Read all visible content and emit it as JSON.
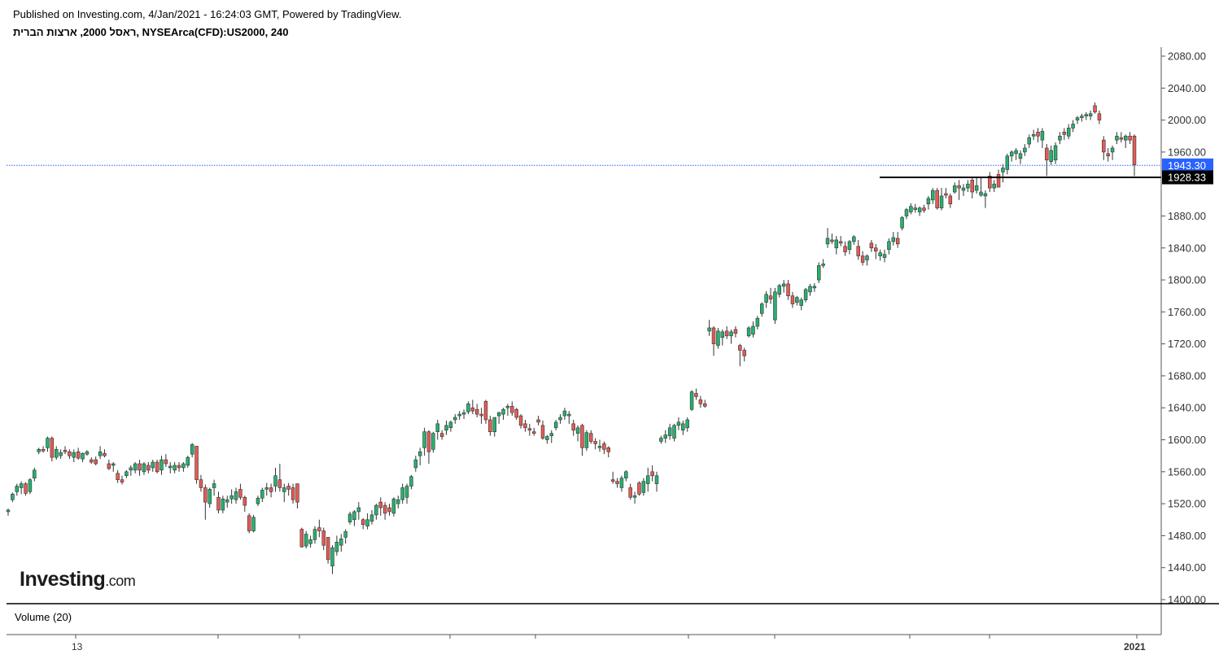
{
  "header": {
    "published": "Published on Investing.com, 4/Jan/2021 - 16:24:03 GMT, Powered by TradingView.",
    "title": "ראסל 2000, ארצות הברית, NYSEArca(CFD):US2000, 240"
  },
  "logo": {
    "main": "Investing",
    "suffix": ".com"
  },
  "volume_label": "Volume (20)",
  "colors": {
    "up": "#26b170",
    "down": "#e55b56",
    "price_line": "#2962ff",
    "support_line": "#000000",
    "price_tag_bg": "#2962ff",
    "support_tag_bg": "#000000"
  },
  "chart_data": {
    "type": "candlestick",
    "title": "ראסל 2000, ארצות הברית, NYSEArca(CFD):US2000, 240",
    "ylim": [
      1395,
      2095
    ],
    "y_ticks": [
      "2080.00",
      "2040.00",
      "2000.00",
      "1960.00",
      "1880.00",
      "1840.00",
      "1800.00",
      "1760.00",
      "1720.00",
      "1680.00",
      "1640.00",
      "1600.00",
      "1560.00",
      "1520.00",
      "1480.00",
      "1440.00",
      "1400.00"
    ],
    "x_tick_labels": [
      "13",
      "2021"
    ],
    "current_price": {
      "value": 1943.3,
      "label": "1943.30"
    },
    "horizontal_line": {
      "value": 1928.33,
      "label": "1928.33"
    },
    "candles": [
      [
        1510,
        1514,
        1505,
        1512
      ],
      [
        1525,
        1534,
        1522,
        1532
      ],
      [
        1535,
        1545,
        1530,
        1542
      ],
      [
        1540,
        1548,
        1532,
        1545
      ],
      [
        1545,
        1547,
        1530,
        1533
      ],
      [
        1535,
        1552,
        1532,
        1550
      ],
      [
        1552,
        1565,
        1548,
        1562
      ],
      [
        1585,
        1590,
        1582,
        1588
      ],
      [
        1588,
        1592,
        1584,
        1586
      ],
      [
        1590,
        1604,
        1585,
        1602
      ],
      [
        1602,
        1604,
        1573,
        1578
      ],
      [
        1578,
        1592,
        1575,
        1588
      ],
      [
        1580,
        1588,
        1576,
        1584
      ],
      [
        1587,
        1592,
        1582,
        1585
      ],
      [
        1585,
        1588,
        1576,
        1580
      ],
      [
        1578,
        1588,
        1572,
        1584
      ],
      [
        1585,
        1590,
        1575,
        1577
      ],
      [
        1576,
        1584,
        1572,
        1583
      ],
      [
        1582,
        1587,
        1580,
        1585
      ],
      [
        1575,
        1578,
        1570,
        1572
      ],
      [
        1575,
        1579,
        1568,
        1570
      ],
      [
        1580,
        1592,
        1576,
        1585
      ],
      [
        1583,
        1588,
        1578,
        1580
      ],
      [
        1570,
        1575,
        1562,
        1564
      ],
      [
        1568,
        1572,
        1560,
        1570
      ],
      [
        1558,
        1562,
        1546,
        1550
      ],
      [
        1550,
        1555,
        1544,
        1547
      ],
      [
        1555,
        1562,
        1552,
        1560
      ],
      [
        1562,
        1568,
        1555,
        1565
      ],
      [
        1562,
        1572,
        1558,
        1570
      ],
      [
        1570,
        1575,
        1555,
        1562
      ],
      [
        1560,
        1572,
        1556,
        1570
      ],
      [
        1568,
        1572,
        1558,
        1562
      ],
      [
        1565,
        1575,
        1560,
        1572
      ],
      [
        1572,
        1575,
        1558,
        1560
      ],
      [
        1562,
        1580,
        1556,
        1575
      ],
      [
        1575,
        1582,
        1566,
        1570
      ],
      [
        1565,
        1572,
        1558,
        1567
      ],
      [
        1562,
        1572,
        1558,
        1568
      ],
      [
        1568,
        1572,
        1560,
        1565
      ],
      [
        1565,
        1572,
        1560,
        1570
      ],
      [
        1568,
        1580,
        1565,
        1578
      ],
      [
        1582,
        1596,
        1578,
        1594
      ],
      [
        1592,
        1592,
        1545,
        1550
      ],
      [
        1550,
        1556,
        1535,
        1540
      ],
      [
        1540,
        1544,
        1500,
        1522
      ],
      [
        1520,
        1540,
        1515,
        1538
      ],
      [
        1540,
        1550,
        1530,
        1545
      ],
      [
        1528,
        1535,
        1508,
        1512
      ],
      [
        1512,
        1530,
        1508,
        1526
      ],
      [
        1522,
        1530,
        1515,
        1525
      ],
      [
        1526,
        1538,
        1520,
        1530
      ],
      [
        1525,
        1540,
        1520,
        1535
      ],
      [
        1538,
        1545,
        1525,
        1528
      ],
      [
        1528,
        1530,
        1510,
        1518
      ],
      [
        1505,
        1508,
        1483,
        1486
      ],
      [
        1486,
        1506,
        1484,
        1503
      ],
      [
        1520,
        1530,
        1517,
        1527
      ],
      [
        1527,
        1540,
        1522,
        1537
      ],
      [
        1538,
        1546,
        1530,
        1540
      ],
      [
        1540,
        1545,
        1528,
        1535
      ],
      [
        1542,
        1565,
        1535,
        1555
      ],
      [
        1550,
        1570,
        1535,
        1540
      ],
      [
        1535,
        1545,
        1522,
        1540
      ],
      [
        1542,
        1546,
        1530,
        1538
      ],
      [
        1540,
        1545,
        1520,
        1525
      ],
      [
        1545,
        1545,
        1514,
        1522
      ],
      [
        1488,
        1490,
        1465,
        1466
      ],
      [
        1467,
        1486,
        1464,
        1482
      ],
      [
        1470,
        1480,
        1465,
        1475
      ],
      [
        1475,
        1492,
        1470,
        1488
      ],
      [
        1490,
        1500,
        1478,
        1486
      ],
      [
        1486,
        1490,
        1462,
        1468
      ],
      [
        1478,
        1478,
        1445,
        1450
      ],
      [
        1442,
        1468,
        1432,
        1465
      ],
      [
        1460,
        1480,
        1455,
        1472
      ],
      [
        1468,
        1482,
        1460,
        1476
      ],
      [
        1478,
        1488,
        1470,
        1485
      ],
      [
        1497,
        1510,
        1494,
        1507
      ],
      [
        1500,
        1512,
        1492,
        1510
      ],
      [
        1510,
        1522,
        1500,
        1515
      ],
      [
        1500,
        1502,
        1488,
        1494
      ],
      [
        1492,
        1508,
        1488,
        1500
      ],
      [
        1498,
        1512,
        1494,
        1506
      ],
      [
        1506,
        1520,
        1500,
        1518
      ],
      [
        1522,
        1528,
        1505,
        1515
      ],
      [
        1518,
        1522,
        1500,
        1508
      ],
      [
        1515,
        1520,
        1505,
        1510
      ],
      [
        1508,
        1528,
        1504,
        1526
      ],
      [
        1520,
        1530,
        1514,
        1525
      ],
      [
        1525,
        1545,
        1520,
        1540
      ],
      [
        1528,
        1545,
        1520,
        1542
      ],
      [
        1542,
        1556,
        1538,
        1554
      ],
      [
        1565,
        1580,
        1560,
        1575
      ],
      [
        1580,
        1590,
        1568,
        1585
      ],
      [
        1590,
        1615,
        1580,
        1610
      ],
      [
        1610,
        1612,
        1570,
        1585
      ],
      [
        1588,
        1610,
        1584,
        1608
      ],
      [
        1610,
        1625,
        1600,
        1620
      ],
      [
        1608,
        1612,
        1600,
        1604
      ],
      [
        1612,
        1624,
        1606,
        1618
      ],
      [
        1615,
        1624,
        1610,
        1622
      ],
      [
        1625,
        1632,
        1620,
        1628
      ],
      [
        1630,
        1636,
        1625,
        1632
      ],
      [
        1632,
        1638,
        1626,
        1634
      ],
      [
        1635,
        1648,
        1632,
        1645
      ],
      [
        1640,
        1650,
        1632,
        1636
      ],
      [
        1638,
        1645,
        1628,
        1632
      ],
      [
        1632,
        1640,
        1620,
        1630
      ],
      [
        1648,
        1650,
        1620,
        1625
      ],
      [
        1625,
        1630,
        1605,
        1610
      ],
      [
        1610,
        1628,
        1604,
        1628
      ],
      [
        1630,
        1635,
        1620,
        1634
      ],
      [
        1632,
        1640,
        1625,
        1638
      ],
      [
        1640,
        1645,
        1630,
        1642
      ],
      [
        1642,
        1648,
        1630,
        1634
      ],
      [
        1638,
        1640,
        1625,
        1628
      ],
      [
        1630,
        1632,
        1614,
        1618
      ],
      [
        1620,
        1625,
        1610,
        1615
      ],
      [
        1614,
        1620,
        1605,
        1612
      ],
      [
        1610,
        1615,
        1605,
        1608
      ],
      [
        1625,
        1630,
        1618,
        1622
      ],
      [
        1618,
        1624,
        1600,
        1602
      ],
      [
        1600,
        1606,
        1595,
        1604
      ],
      [
        1605,
        1612,
        1596,
        1608
      ],
      [
        1615,
        1625,
        1612,
        1622
      ],
      [
        1625,
        1632,
        1620,
        1628
      ],
      [
        1630,
        1640,
        1625,
        1636
      ],
      [
        1630,
        1636,
        1620,
        1632
      ],
      [
        1620,
        1625,
        1605,
        1612
      ],
      [
        1608,
        1618,
        1598,
        1615
      ],
      [
        1618,
        1620,
        1580,
        1590
      ],
      [
        1590,
        1612,
        1586,
        1609
      ],
      [
        1608,
        1612,
        1595,
        1598
      ],
      [
        1598,
        1602,
        1588,
        1595
      ],
      [
        1590,
        1600,
        1585,
        1592
      ],
      [
        1595,
        1598,
        1582,
        1588
      ],
      [
        1590,
        1592,
        1578,
        1585
      ],
      [
        1550,
        1560,
        1545,
        1548
      ],
      [
        1548,
        1552,
        1540,
        1545
      ],
      [
        1540,
        1555,
        1535,
        1552
      ],
      [
        1552,
        1562,
        1548,
        1560
      ],
      [
        1540,
        1545,
        1525,
        1528
      ],
      [
        1528,
        1535,
        1520,
        1530
      ],
      [
        1546,
        1548,
        1530,
        1532
      ],
      [
        1534,
        1552,
        1530,
        1548
      ],
      [
        1545,
        1565,
        1535,
        1555
      ],
      [
        1560,
        1568,
        1548,
        1555
      ],
      [
        1545,
        1560,
        1535,
        1555
      ],
      [
        1598,
        1605,
        1595,
        1602
      ],
      [
        1602,
        1612,
        1596,
        1606
      ],
      [
        1605,
        1620,
        1600,
        1615
      ],
      [
        1602,
        1620,
        1598,
        1618
      ],
      [
        1618,
        1628,
        1612,
        1622
      ],
      [
        1612,
        1624,
        1606,
        1620
      ],
      [
        1615,
        1628,
        1610,
        1625
      ],
      [
        1638,
        1662,
        1636,
        1660
      ],
      [
        1658,
        1664,
        1650,
        1654
      ],
      [
        1650,
        1655,
        1640,
        1645
      ],
      [
        1645,
        1650,
        1640,
        1642
      ],
      [
        1736,
        1750,
        1730,
        1740
      ],
      [
        1740,
        1742,
        1705,
        1720
      ],
      [
        1718,
        1740,
        1714,
        1736
      ],
      [
        1728,
        1738,
        1718,
        1735
      ],
      [
        1736,
        1742,
        1726,
        1730
      ],
      [
        1730,
        1738,
        1720,
        1735
      ],
      [
        1738,
        1742,
        1728,
        1733
      ],
      [
        1718,
        1720,
        1692,
        1712
      ],
      [
        1712,
        1715,
        1698,
        1705
      ],
      [
        1730,
        1742,
        1728,
        1740
      ],
      [
        1732,
        1748,
        1728,
        1742
      ],
      [
        1742,
        1755,
        1738,
        1752
      ],
      [
        1758,
        1772,
        1754,
        1770
      ],
      [
        1772,
        1786,
        1765,
        1782
      ],
      [
        1780,
        1790,
        1770,
        1776
      ],
      [
        1750,
        1790,
        1745,
        1785
      ],
      [
        1782,
        1795,
        1778,
        1793
      ],
      [
        1792,
        1800,
        1784,
        1795
      ],
      [
        1795,
        1800,
        1775,
        1780
      ],
      [
        1780,
        1785,
        1765,
        1770
      ],
      [
        1772,
        1780,
        1768,
        1778
      ],
      [
        1768,
        1778,
        1762,
        1775
      ],
      [
        1775,
        1790,
        1772,
        1788
      ],
      [
        1785,
        1795,
        1780,
        1792
      ],
      [
        1790,
        1796,
        1785,
        1792
      ],
      [
        1800,
        1822,
        1796,
        1818
      ],
      [
        1818,
        1826,
        1815,
        1820
      ],
      [
        1845,
        1865,
        1840,
        1852
      ],
      [
        1850,
        1858,
        1845,
        1848
      ],
      [
        1840,
        1855,
        1832,
        1850
      ],
      [
        1848,
        1855,
        1842,
        1846
      ],
      [
        1842,
        1848,
        1830,
        1835
      ],
      [
        1838,
        1850,
        1832,
        1848
      ],
      [
        1848,
        1856,
        1844,
        1854
      ],
      [
        1842,
        1850,
        1825,
        1830
      ],
      [
        1830,
        1836,
        1818,
        1822
      ],
      [
        1825,
        1832,
        1818,
        1830
      ],
      [
        1846,
        1850,
        1835,
        1840
      ],
      [
        1840,
        1845,
        1826,
        1836
      ],
      [
        1830,
        1838,
        1824,
        1834
      ],
      [
        1828,
        1838,
        1822,
        1832
      ],
      [
        1838,
        1852,
        1832,
        1848
      ],
      [
        1848,
        1860,
        1843,
        1853
      ],
      [
        1852,
        1860,
        1840,
        1845
      ],
      [
        1865,
        1880,
        1862,
        1878
      ],
      [
        1880,
        1890,
        1876,
        1888
      ],
      [
        1885,
        1896,
        1882,
        1892
      ],
      [
        1888,
        1895,
        1884,
        1890
      ],
      [
        1885,
        1892,
        1880,
        1890
      ],
      [
        1890,
        1894,
        1884,
        1887
      ],
      [
        1895,
        1905,
        1888,
        1902
      ],
      [
        1900,
        1915,
        1895,
        1912
      ],
      [
        1912,
        1915,
        1888,
        1890
      ],
      [
        1890,
        1915,
        1887,
        1905
      ],
      [
        1908,
        1915,
        1902,
        1906
      ],
      [
        1905,
        1908,
        1890,
        1895
      ],
      [
        1910,
        1922,
        1908,
        1918
      ],
      [
        1918,
        1925,
        1900,
        1915
      ],
      [
        1912,
        1920,
        1905,
        1915
      ],
      [
        1915,
        1925,
        1910,
        1920
      ],
      [
        1925,
        1928,
        1902,
        1910
      ],
      [
        1912,
        1928,
        1908,
        1918
      ],
      [
        1906,
        1928,
        1904,
        1910
      ],
      [
        1905,
        1912,
        1890,
        1908
      ],
      [
        1930,
        1935,
        1910,
        1915
      ],
      [
        1915,
        1925,
        1910,
        1920
      ],
      [
        1932,
        1938,
        1916,
        1916
      ],
      [
        1935,
        1945,
        1922,
        1940
      ],
      [
        1938,
        1958,
        1932,
        1955
      ],
      [
        1955,
        1962,
        1948,
        1960
      ],
      [
        1958,
        1965,
        1950,
        1962
      ],
      [
        1952,
        1962,
        1945,
        1958
      ],
      [
        1960,
        1970,
        1955,
        1965
      ],
      [
        1970,
        1982,
        1965,
        1978
      ],
      [
        1980,
        1988,
        1975,
        1982
      ],
      [
        1985,
        1990,
        1972,
        1980
      ],
      [
        1975,
        1990,
        1965,
        1986
      ],
      [
        1965,
        1970,
        1930,
        1950
      ],
      [
        1948,
        1968,
        1944,
        1962
      ],
      [
        1950,
        1972,
        1945,
        1968
      ],
      [
        1975,
        1985,
        1970,
        1980
      ],
      [
        1985,
        1990,
        1975,
        1982
      ],
      [
        1980,
        1995,
        1976,
        1990
      ],
      [
        1990,
        2000,
        1985,
        1995
      ],
      [
        2000,
        2005,
        1995,
        2003
      ],
      [
        2003,
        2008,
        1998,
        2005
      ],
      [
        2005,
        2010,
        2000,
        2007
      ],
      [
        2005,
        2012,
        2000,
        2008
      ],
      [
        2018,
        2022,
        2008,
        2010
      ],
      [
        2008,
        2012,
        1995,
        2000
      ],
      [
        1975,
        1980,
        1950,
        1960
      ],
      [
        1958,
        1965,
        1948,
        1955
      ],
      [
        1960,
        1968,
        1950,
        1965
      ],
      [
        1975,
        1985,
        1970,
        1980
      ],
      [
        1978,
        1985,
        1972,
        1976
      ],
      [
        1975,
        1982,
        1965,
        1980
      ],
      [
        1980,
        1985,
        1970,
        1975
      ],
      [
        1980,
        1982,
        1930,
        1944
      ]
    ]
  }
}
